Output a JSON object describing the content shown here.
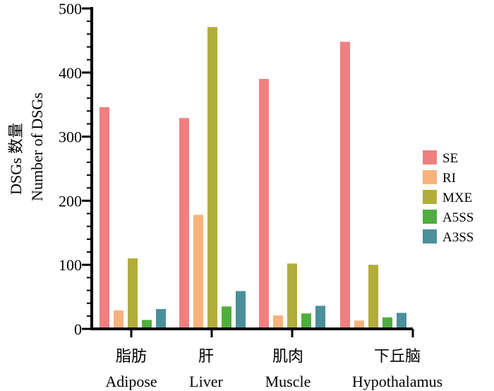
{
  "chart_data": {
    "type": "bar",
    "categories_cn": [
      "脂肪",
      "肝",
      "肌肉",
      "下丘脑"
    ],
    "categories": [
      "Adipose",
      "Liver",
      "Muscle",
      "Hypothalamus"
    ],
    "ylabel_cn": "DSGs 数量",
    "ylabel": "Number of DSGs",
    "ylim": [
      0,
      500
    ],
    "yticks": [
      0,
      100,
      200,
      300,
      400,
      500
    ],
    "legend_position": "right",
    "grid": false,
    "series": [
      {
        "name": "SE",
        "color": "#f07f7f",
        "values": [
          346,
          329,
          390,
          448
        ]
      },
      {
        "name": "RI",
        "color": "#f9b27b",
        "values": [
          29,
          178,
          21,
          13
        ]
      },
      {
        "name": "MXE",
        "color": "#b1ad3b",
        "values": [
          110,
          471,
          102,
          100
        ]
      },
      {
        "name": "A5SS",
        "color": "#4fae3f",
        "values": [
          14,
          35,
          24,
          18
        ]
      },
      {
        "name": "A3SS",
        "color": "#4a8f9b",
        "values": [
          31,
          59,
          36,
          25
        ]
      }
    ]
  }
}
